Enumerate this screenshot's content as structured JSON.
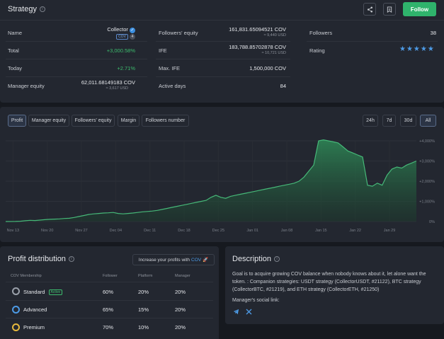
{
  "strategy": {
    "title": "Strategy",
    "follow_label": "Follow",
    "rows": {
      "name_label": "Name",
      "name_value": "Collector",
      "name_badge": "COV",
      "name_count": "4",
      "total_label": "Total",
      "total_value": "+3,000.58%",
      "today_label": "Today",
      "today_value": "+2.71%",
      "manager_equity_label": "Manager equity",
      "manager_equity_value": "62,011.68149183 COV",
      "manager_equity_usd": "≈ 3,617 USD",
      "followers_equity_label": "Followers' equity",
      "followers_equity_value": "161,831.65094521 COV",
      "followers_equity_usd": "≈ 9,440 USD",
      "ife_label": "IFE",
      "ife_value": "183,788.85702878 COV",
      "ife_usd": "≈ 10,721 USD",
      "max_ife_label": "Max. IFE",
      "max_ife_value": "1,500,000 COV",
      "active_days_label": "Active days",
      "active_days_value": "84",
      "followers_label": "Followers",
      "followers_value": "38",
      "rating_label": "Rating",
      "rating_stars": "★★★★★"
    }
  },
  "chart_tabs": [
    "Profit",
    "Manager equity",
    "Followers' equity",
    "Margin",
    "Followers number"
  ],
  "range_tabs": [
    "24h",
    "7d",
    "30d",
    "All"
  ],
  "chart_data": {
    "type": "area",
    "categories": [
      "Nov 13",
      "Nov 20",
      "Nov 27",
      "Dec 04",
      "Dec 11",
      "Dec 18",
      "Dec 25",
      "Jan 01",
      "Jan 08",
      "Jan 15",
      "Jan 22",
      "Jan 29"
    ],
    "y_ticks": [
      "+4,000%",
      "+3,000%",
      "+2,000%",
      "+1,000%",
      "0%"
    ],
    "ylim": [
      0,
      4000
    ],
    "x": [
      0,
      2,
      3,
      4,
      5,
      6,
      7,
      8,
      9,
      10,
      11,
      12,
      13,
      14,
      15,
      16,
      17,
      18,
      19,
      20,
      21,
      22,
      23,
      24,
      25,
      26,
      27,
      28,
      29,
      30,
      31,
      32,
      33,
      34,
      35,
      36,
      37,
      38,
      39,
      40,
      41,
      42,
      43,
      44,
      45,
      46,
      47,
      48,
      49,
      50,
      51,
      52,
      53,
      54,
      55,
      56,
      57,
      58,
      59,
      60,
      61,
      62,
      63,
      64,
      65,
      66,
      67,
      68,
      69,
      70,
      71,
      72,
      73,
      74,
      75,
      76,
      77,
      78,
      79,
      80,
      81,
      82,
      83,
      84
    ],
    "values": [
      0,
      5,
      15,
      40,
      60,
      50,
      70,
      90,
      110,
      120,
      130,
      150,
      160,
      200,
      250,
      300,
      350,
      380,
      400,
      420,
      430,
      450,
      400,
      380,
      400,
      420,
      450,
      480,
      500,
      520,
      550,
      600,
      650,
      700,
      750,
      800,
      850,
      900,
      950,
      1000,
      1050,
      1200,
      1300,
      1200,
      1150,
      1250,
      1300,
      1350,
      1400,
      1450,
      1500,
      1550,
      1600,
      1650,
      1700,
      1750,
      1800,
      1850,
      1900,
      2000,
      2200,
      2500,
      2800,
      4000,
      4050,
      4000,
      3950,
      3900,
      3700,
      3500,
      3400,
      3300,
      3200,
      1800,
      1750,
      1900,
      1800,
      2300,
      2600,
      2700,
      2650,
      2800,
      2900,
      3000
    ]
  },
  "profit_distribution": {
    "title": "Profit distribution",
    "increase_label": "Increase your profits with",
    "increase_link": "COV",
    "columns": [
      "COV Membership",
      "Follower",
      "Platform",
      "Manager"
    ],
    "tiers": [
      {
        "name": "Standard",
        "badge": "Active",
        "follower": "60%",
        "platform": "20%",
        "manager": "20%",
        "color": "#9aa0aa"
      },
      {
        "name": "Advanced",
        "follower": "65%",
        "platform": "15%",
        "manager": "20%",
        "color": "#4d9be6"
      },
      {
        "name": "Premium",
        "follower": "70%",
        "platform": "10%",
        "manager": "20%",
        "color": "#e6b93d"
      }
    ]
  },
  "description": {
    "title": "Description",
    "text": "Goal is to acquire growing COV balance when nobody knows about it, let alone want the token. : Companion strategies: USDT strategy (CollectorUSDT, #21122), BTC strategy (CollectorBTC, #21219), and ETH strategy (CollectorETH, #21250)",
    "social_label": "Manager's social link:"
  }
}
